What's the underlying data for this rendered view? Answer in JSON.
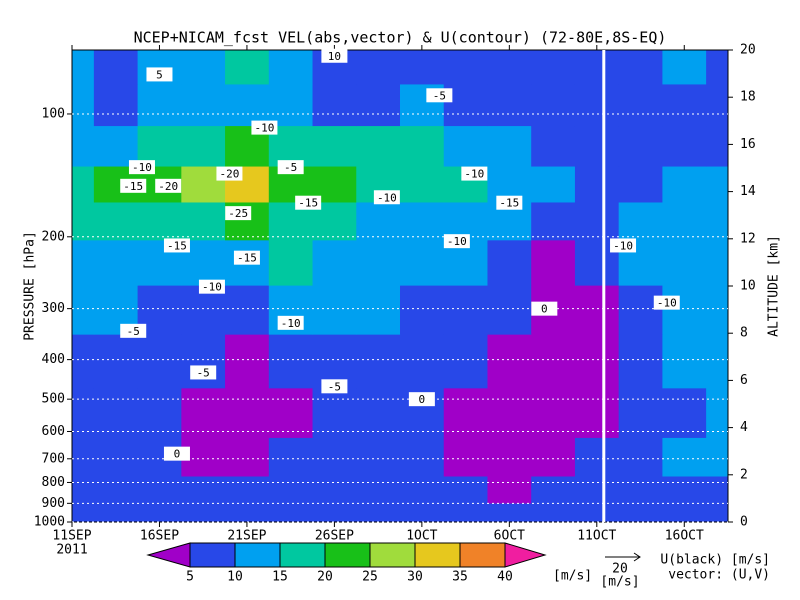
{
  "chart_data": {
    "type": "heatmap",
    "title": "NCEP+NICAM_fcst VEL(abs,vector) & U(contour)   (72-80E,8S-EQ)",
    "year": "2011",
    "ylabel": "PRESSURE [hPa]",
    "y2label": "ALTITUDE [km]",
    "ylog": true,
    "grid": true,
    "xlim": [
      0,
      37.5
    ],
    "xticks": [
      {
        "value": 0,
        "label": "11SEP"
      },
      {
        "value": 5,
        "label": "16SEP"
      },
      {
        "value": 10,
        "label": "21SEP"
      },
      {
        "value": 15,
        "label": "26SEP"
      },
      {
        "value": 20,
        "label": "1OCT"
      },
      {
        "value": 25,
        "label": "6OCT"
      },
      {
        "value": 30,
        "label": "11OCT"
      },
      {
        "value": 35,
        "label": "16OCT"
      }
    ],
    "ylim": [
      1000,
      69.7
    ],
    "yticks": [
      100,
      200,
      300,
      400,
      500,
      600,
      700,
      800,
      900,
      1000
    ],
    "y2lim": [
      0,
      20
    ],
    "y2ticks": [
      0,
      2,
      4,
      6,
      8,
      10,
      12,
      14,
      16,
      18,
      20
    ],
    "forecast_start": 30.4,
    "field": {
      "x": [
        0,
        2.5,
        5,
        7.5,
        10,
        12.5,
        15,
        17.5,
        20,
        22.5,
        25,
        27.5,
        30,
        32.5,
        35,
        37.5
      ],
      "levels": [
        950,
        850,
        700,
        550,
        400,
        300,
        230,
        180,
        150,
        120,
        95,
        75
      ],
      "values": [
        [
          8,
          8,
          8,
          6,
          7,
          7,
          8,
          7,
          7,
          7,
          6,
          8,
          8,
          9,
          8,
          8
        ],
        [
          8,
          7,
          9,
          7,
          6,
          7,
          8,
          8,
          7,
          6,
          4,
          7,
          6,
          8,
          9,
          8
        ],
        [
          9,
          8,
          7,
          4,
          3,
          6,
          8,
          7,
          6,
          4,
          3,
          4,
          5,
          8,
          10,
          10
        ],
        [
          9,
          8,
          7,
          3,
          3,
          4,
          6,
          7,
          5,
          4,
          3,
          3,
          4,
          7,
          9,
          12
        ],
        [
          7,
          8,
          8,
          6,
          4,
          6,
          7,
          7,
          8,
          6,
          4,
          3,
          4,
          6,
          10,
          12
        ],
        [
          10,
          11,
          9,
          8,
          7,
          12,
          12,
          10,
          9,
          8,
          6,
          3,
          4,
          8,
          12,
          13
        ],
        [
          12,
          13,
          14,
          14,
          14,
          15,
          12,
          10,
          11,
          10,
          8,
          4,
          5,
          10,
          12,
          12
        ],
        [
          15,
          16,
          18,
          18,
          22,
          18,
          16,
          12,
          14,
          13,
          10,
          8,
          7,
          10,
          12,
          11
        ],
        [
          18,
          22,
          23,
          26,
          32,
          24,
          20,
          15,
          19,
          18,
          12,
          10,
          8,
          9,
          10,
          10
        ],
        [
          12,
          14,
          16,
          18,
          20,
          18,
          15,
          16,
          17,
          14,
          10,
          8,
          7,
          8,
          9,
          9
        ],
        [
          10,
          9,
          12,
          14,
          13,
          10,
          9,
          8,
          10,
          8,
          6,
          7,
          5,
          6,
          8,
          7
        ],
        [
          10,
          9,
          12,
          14,
          16,
          12,
          8,
          7,
          9,
          6,
          5,
          6,
          8,
          9,
          12,
          8
        ]
      ]
    },
    "contour_labels": [
      {
        "value": -20,
        "x": 5.5,
        "p": 150
      },
      {
        "value": -20,
        "x": 9,
        "p": 140
      },
      {
        "value": -25,
        "x": 9.5,
        "p": 175
      },
      {
        "value": -15,
        "x": 3.5,
        "p": 150
      },
      {
        "value": -10,
        "x": 4,
        "p": 135
      },
      {
        "value": -15,
        "x": 13.5,
        "p": 165
      },
      {
        "value": -15,
        "x": 6,
        "p": 210
      },
      {
        "value": -15,
        "x": 10,
        "p": 225
      },
      {
        "value": -10,
        "x": 8,
        "p": 265
      },
      {
        "value": -10,
        "x": 18,
        "p": 160
      },
      {
        "value": -10,
        "x": 23,
        "p": 140
      },
      {
        "value": -15,
        "x": 25,
        "p": 165
      },
      {
        "value": -10,
        "x": 22,
        "p": 205
      },
      {
        "value": -10,
        "x": 11,
        "p": 108
      },
      {
        "value": -5,
        "x": 12.5,
        "p": 135
      },
      {
        "value": -5,
        "x": 3.5,
        "p": 340
      },
      {
        "value": -5,
        "x": 7.5,
        "p": 430
      },
      {
        "value": -5,
        "x": 15,
        "p": 465
      },
      {
        "value": -10,
        "x": 12.5,
        "p": 325
      },
      {
        "value": 0,
        "x": 6,
        "p": 680
      },
      {
        "value": 0,
        "x": 20,
        "p": 500
      },
      {
        "value": 0,
        "x": 27,
        "p": 300
      },
      {
        "value": 5,
        "x": 5,
        "p": 80
      },
      {
        "value": 10,
        "x": 15,
        "p": 72
      },
      {
        "value": -5,
        "x": 21,
        "p": 90
      },
      {
        "value": -10,
        "x": 31.5,
        "p": 210
      },
      {
        "value": -10,
        "x": 34,
        "p": 290
      }
    ],
    "colorbar": {
      "levels": [
        5,
        10,
        15,
        20,
        25,
        30,
        35,
        40
      ],
      "colors": [
        "#a000c8",
        "#2848e8",
        "#00a0f0",
        "#00c8a0",
        "#18c018",
        "#a0dc3c",
        "#e6c81e",
        "#f08228",
        "#f01ea0"
      ],
      "unit": "[m/s]"
    },
    "reference_vector": {
      "length": "20",
      "unit": "[m/s]"
    },
    "contour_note": "U(black) [m/s]",
    "vector_note": "vector: (U,V)"
  }
}
